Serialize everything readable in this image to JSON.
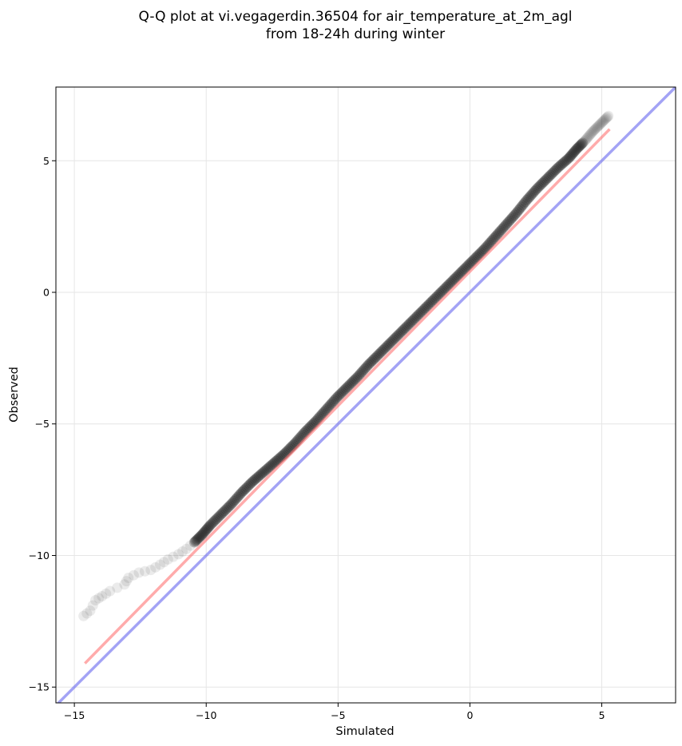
{
  "chart_data": {
    "type": "scatter",
    "title_lines": [
      "Q-Q plot at vi.vegagerdin.36504 for air_temperature_at_2m_agl",
      "from 18-24h during winter"
    ],
    "xlabel": "Simulated",
    "ylabel": "Observed",
    "xlim": [
      -15.7,
      7.8
    ],
    "ylim": [
      -15.6,
      7.8
    ],
    "xticks": [
      -15,
      -10,
      -5,
      0,
      5
    ],
    "yticks": [
      -15,
      -10,
      -5,
      0,
      5
    ],
    "xtick_labels": [
      "−15",
      "−10",
      "−5",
      "0",
      "5"
    ],
    "ytick_labels": [
      "−15",
      "−10",
      "−5",
      "0",
      "5"
    ],
    "grid": true,
    "colors": {
      "points": "#222222",
      "fit_line": "#ff6666",
      "identity_line": "#6666ee"
    },
    "identity_line": {
      "x": [
        -15.7,
        7.8
      ],
      "y": [
        -15.7,
        7.8
      ]
    },
    "fit_line": {
      "x": [
        -14.6,
        5.3
      ],
      "y": [
        -14.1,
        6.2
      ]
    },
    "series": [
      {
        "x": [
          -14.65,
          -14.4,
          -14.2,
          -13.95,
          -13.65,
          -13.1,
          -12.95,
          -12.55,
          -12.1,
          -11.75,
          -11.45,
          -11.05,
          -10.75,
          -10.45,
          -10.15,
          -9.85,
          -9.45,
          -9.05,
          -8.65,
          -8.25,
          -7.85,
          -7.45,
          -7.05,
          -6.65,
          -6.25,
          -5.85,
          -5.45,
          -5.05,
          -4.65,
          -4.25,
          -3.85,
          -3.45,
          -3.05,
          -2.65,
          -2.25,
          -1.85,
          -1.45,
          -1.05,
          -0.65,
          -0.25,
          0.15,
          0.55,
          0.95,
          1.35,
          1.75,
          2.15,
          2.55,
          2.95,
          3.35,
          3.75,
          4.05,
          4.35,
          4.65,
          4.95,
          5.25
        ],
        "y": [
          -12.3,
          -12.1,
          -11.7,
          -11.55,
          -11.35,
          -11.1,
          -10.85,
          -10.65,
          -10.55,
          -10.35,
          -10.15,
          -9.95,
          -9.75,
          -9.5,
          -9.2,
          -8.85,
          -8.45,
          -8.05,
          -7.6,
          -7.2,
          -6.85,
          -6.5,
          -6.15,
          -5.75,
          -5.3,
          -4.9,
          -4.45,
          -4.0,
          -3.6,
          -3.2,
          -2.75,
          -2.35,
          -1.95,
          -1.55,
          -1.15,
          -0.75,
          -0.35,
          0.05,
          0.45,
          0.85,
          1.25,
          1.65,
          2.1,
          2.55,
          3.0,
          3.5,
          3.95,
          4.35,
          4.75,
          5.1,
          5.45,
          5.75,
          6.1,
          6.4,
          6.7
        ]
      }
    ]
  }
}
